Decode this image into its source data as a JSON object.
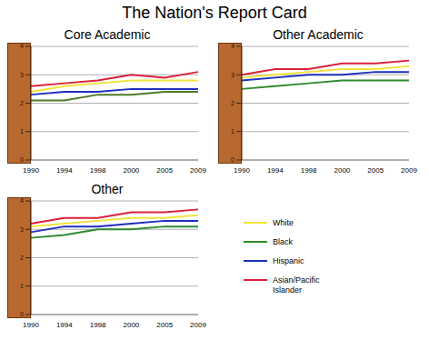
{
  "title": "The Nation's Report Card",
  "chart_data": [
    {
      "type": "line",
      "title": "Core Academic",
      "categories": [
        "1990",
        "1994",
        "1998",
        "2000",
        "2005",
        "2009"
      ],
      "ylim": [
        0,
        4
      ],
      "yticks": [
        0,
        1,
        2,
        3,
        4
      ],
      "grid": true,
      "series": [
        {
          "name": "White",
          "color": "#f2e33a",
          "values": [
            2.4,
            2.6,
            2.7,
            2.8,
            2.8,
            2.8
          ]
        },
        {
          "name": "Black",
          "color": "#4f7a28",
          "values": [
            2.1,
            2.1,
            2.3,
            2.3,
            2.4,
            2.4
          ]
        },
        {
          "name": "Hispanic",
          "color": "#1f2fbf",
          "values": [
            2.3,
            2.4,
            2.4,
            2.5,
            2.5,
            2.5
          ]
        },
        {
          "name": "Asian/Pacific Islander",
          "color": "#d9223a",
          "values": [
            2.6,
            2.7,
            2.8,
            3.0,
            2.9,
            3.1
          ]
        }
      ]
    },
    {
      "type": "line",
      "title": "Other Academic",
      "categories": [
        "1990",
        "1994",
        "1998",
        "2000",
        "2005",
        "2009"
      ],
      "ylim": [
        0,
        4
      ],
      "yticks": [
        0,
        1,
        2,
        3,
        4
      ],
      "grid": true,
      "series": [
        {
          "name": "White",
          "color": "#f2e33a",
          "values": [
            2.9,
            3.0,
            3.1,
            3.2,
            3.2,
            3.3
          ]
        },
        {
          "name": "Black",
          "color": "#2e8b2e",
          "values": [
            2.5,
            2.6,
            2.7,
            2.8,
            2.8,
            2.8
          ]
        },
        {
          "name": "Hispanic",
          "color": "#1f2fbf",
          "values": [
            2.8,
            2.9,
            3.0,
            3.0,
            3.1,
            3.1
          ]
        },
        {
          "name": "Asian/Pacific Islander",
          "color": "#d9223a",
          "values": [
            3.0,
            3.2,
            3.2,
            3.4,
            3.4,
            3.5
          ]
        }
      ]
    },
    {
      "type": "line",
      "title": "Other",
      "categories": [
        "1990",
        "1994",
        "1998",
        "2000",
        "2005",
        "2009"
      ],
      "ylim": [
        0,
        4
      ],
      "yticks": [
        0,
        1,
        2,
        3,
        4
      ],
      "grid": true,
      "legend": "right",
      "series": [
        {
          "name": "White",
          "color": "#f2e33a",
          "values": [
            3.1,
            3.2,
            3.3,
            3.4,
            3.4,
            3.5
          ]
        },
        {
          "name": "Black",
          "color": "#2e8b2e",
          "values": [
            2.7,
            2.8,
            3.0,
            3.0,
            3.1,
            3.1
          ]
        },
        {
          "name": "Hispanic",
          "color": "#1f2fbf",
          "values": [
            2.9,
            3.1,
            3.1,
            3.2,
            3.3,
            3.3
          ]
        },
        {
          "name": "Asian/Pacific Islander",
          "color": "#d9223a",
          "values": [
            3.2,
            3.4,
            3.4,
            3.6,
            3.6,
            3.7
          ]
        }
      ]
    }
  ]
}
